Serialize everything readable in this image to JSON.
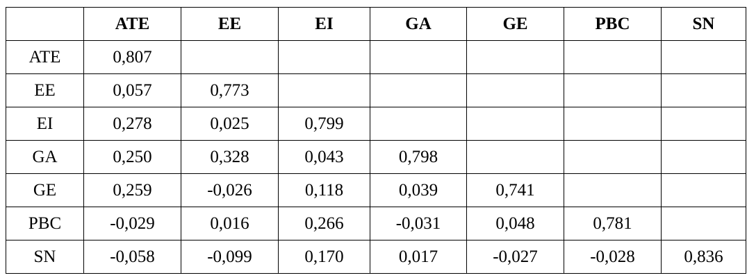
{
  "table": {
    "corner": "",
    "columns": [
      "ATE",
      "EE",
      "EI",
      "GA",
      "GE",
      "PBC",
      "SN"
    ],
    "rows": [
      {
        "label": "ATE",
        "cells": [
          "0,807",
          "",
          "",
          "",
          "",
          "",
          ""
        ]
      },
      {
        "label": "EE",
        "cells": [
          "0,057",
          "0,773",
          "",
          "",
          "",
          "",
          ""
        ]
      },
      {
        "label": "EI",
        "cells": [
          "0,278",
          "0,025",
          "0,799",
          "",
          "",
          "",
          ""
        ]
      },
      {
        "label": "GA",
        "cells": [
          "0,250",
          "0,328",
          "0,043",
          "0,798",
          "",
          "",
          ""
        ]
      },
      {
        "label": "GE",
        "cells": [
          "0,259",
          "-0,026",
          "0,118",
          "0,039",
          "0,741",
          "",
          ""
        ]
      },
      {
        "label": "PBC",
        "cells": [
          "-0,029",
          "0,016",
          "0,266",
          "-0,031",
          "0,048",
          "0,781",
          ""
        ]
      },
      {
        "label": "SN",
        "cells": [
          "-0,058",
          "-0,099",
          "0,170",
          "0,017",
          "-0,027",
          "-0,028",
          "0,836"
        ]
      }
    ]
  }
}
